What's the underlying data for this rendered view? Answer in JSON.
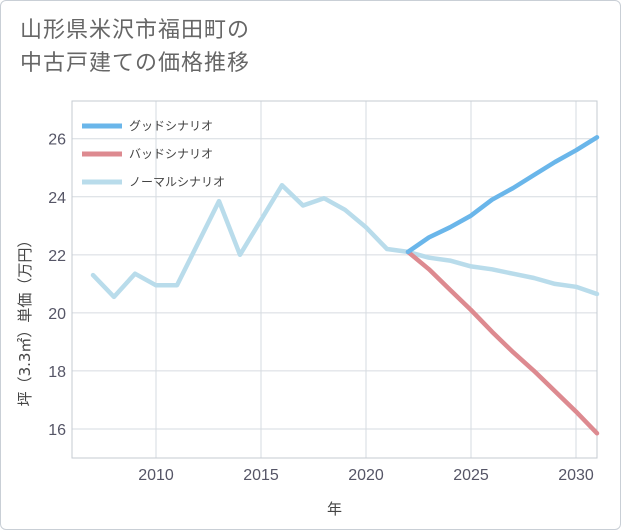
{
  "chart_data": {
    "type": "line",
    "title_lines": [
      "山形県米沢市福田町の",
      "中古戸建ての価格推移"
    ],
    "xlabel": "年",
    "ylabel": "坪（3.3㎡）単価（万円）",
    "xlim": [
      2006,
      2031
    ],
    "ylim": [
      15,
      27.3
    ],
    "x_ticks": [
      2010,
      2015,
      2020,
      2025,
      2030
    ],
    "y_ticks": [
      16,
      18,
      20,
      22,
      24,
      26
    ],
    "grid": true,
    "legend_position": "top-left",
    "series": [
      {
        "name": "グッドシナリオ",
        "color": "#6ab6ea",
        "x": [
          2022,
          2023,
          2024,
          2025,
          2026,
          2027,
          2028,
          2029,
          2030,
          2031
        ],
        "values": [
          22.1,
          22.6,
          22.95,
          23.35,
          23.9,
          24.3,
          24.75,
          25.2,
          25.6,
          26.05
        ]
      },
      {
        "name": "バッドシナリオ",
        "color": "#dd8a90",
        "x": [
          2022,
          2023,
          2024,
          2025,
          2026,
          2027,
          2028,
          2029,
          2030,
          2031
        ],
        "values": [
          22.1,
          21.5,
          20.8,
          20.1,
          19.35,
          18.65,
          18.0,
          17.3,
          16.6,
          15.85
        ]
      },
      {
        "name": "ノーマルシナリオ",
        "color": "#b9dceb",
        "x": [
          2007,
          2008,
          2009,
          2010,
          2011,
          2012,
          2013,
          2014,
          2015,
          2016,
          2017,
          2018,
          2019,
          2020,
          2021,
          2022,
          2023,
          2024,
          2025,
          2026,
          2027,
          2028,
          2029,
          2030,
          2031
        ],
        "values": [
          21.3,
          20.55,
          21.35,
          20.95,
          20.95,
          22.4,
          23.85,
          22.0,
          23.2,
          24.4,
          23.7,
          23.95,
          23.55,
          22.95,
          22.2,
          22.1,
          21.9,
          21.8,
          21.6,
          21.5,
          21.35,
          21.2,
          21.0,
          20.9,
          20.65
        ]
      }
    ]
  }
}
